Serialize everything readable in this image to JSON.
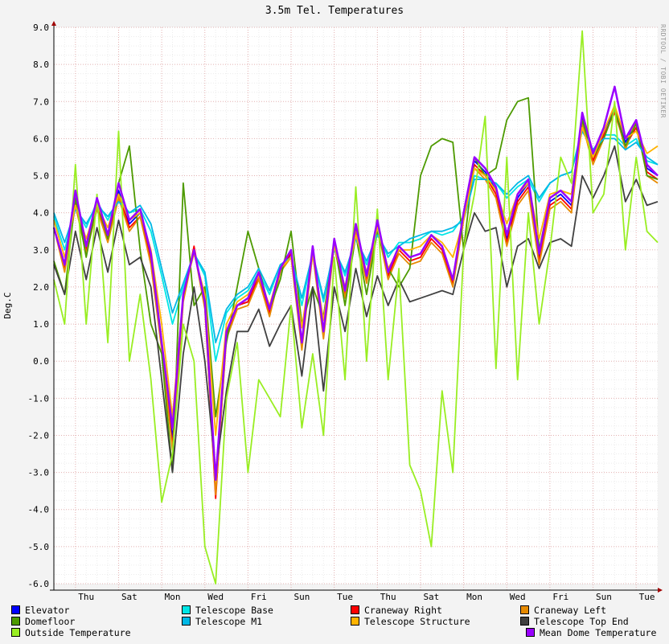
{
  "chart_data": {
    "type": "line",
    "title": "3.5m Tel. Temperatures",
    "vendor_label": "RRDTOOL / TOBI OETIKER",
    "ylabel": "Deg.C",
    "xlabel": "",
    "ylim": [
      -6.0,
      9.0
    ],
    "yticks": [
      "-6.0",
      "-5.0",
      "-4.0",
      "-3.0",
      "-2.0",
      "-1.0",
      "0.0",
      "1.0",
      "2.0",
      "3.0",
      "4.0",
      "5.0",
      "6.0",
      "7.0",
      "8.0",
      "9.0"
    ],
    "x_range_days": [
      0,
      14
    ],
    "x_tick_labels": [
      {
        "label": "Thu",
        "day": 0.75
      },
      {
        "label": "Sat",
        "day": 1.75
      },
      {
        "label": "Mon",
        "day": 2.75
      },
      {
        "label": "Wed",
        "day": 3.75
      },
      {
        "label": "Fri",
        "day": 4.75
      },
      {
        "label": "Sun",
        "day": 5.75
      },
      {
        "label": "Tue",
        "day": 6.75
      },
      {
        "label": "Thu",
        "day": 7.75
      },
      {
        "label": "Sat",
        "day": 8.75
      },
      {
        "label": "Mon",
        "day": 9.75
      },
      {
        "label": "Wed",
        "day": 10.75
      },
      {
        "label": "Fri",
        "day": 11.75
      },
      {
        "label": "Sun",
        "day": 12.75
      },
      {
        "label": "Tue",
        "day": 13.75
      }
    ],
    "grid": true,
    "legend_position": "bottom",
    "x": [
      0,
      0.25,
      0.5,
      0.75,
      1,
      1.25,
      1.5,
      1.75,
      2,
      2.25,
      2.5,
      2.75,
      3,
      3.25,
      3.5,
      3.75,
      4,
      4.25,
      4.5,
      4.75,
      5,
      5.25,
      5.5,
      5.75,
      6,
      6.25,
      6.5,
      6.75,
      7,
      7.25,
      7.5,
      7.75,
      8,
      8.25,
      8.5,
      8.75,
      9,
      9.25,
      9.5,
      9.75,
      10,
      10.25,
      10.5,
      10.75,
      11,
      11.25,
      11.5,
      11.75,
      12,
      12.25,
      12.5,
      12.75,
      13,
      13.25,
      13.5,
      13.75,
      14
    ],
    "series": [
      {
        "name": "Elevator",
        "color": "#0000ff",
        "values": [
          3.6,
          2.5,
          4.3,
          3.0,
          4.2,
          3.4,
          4.6,
          3.7,
          4.0,
          2.8,
          0.5,
          -2.1,
          1.8,
          3.0,
          1.5,
          -3.2,
          0.8,
          1.5,
          1.6,
          2.3,
          1.4,
          2.4,
          2.9,
          0.5,
          3.0,
          0.8,
          3.2,
          1.8,
          3.6,
          2.3,
          3.7,
          2.4,
          3.1,
          2.8,
          2.9,
          3.4,
          3.1,
          2.2,
          4.0,
          5.4,
          5.1,
          4.6,
          3.3,
          4.4,
          4.8,
          2.8,
          4.3,
          4.5,
          4.2,
          6.6,
          5.5,
          6.2,
          6.8,
          5.9,
          6.4,
          5.2,
          5.0
        ]
      },
      {
        "name": "Telescope Base",
        "color": "#00e6e6",
        "values": [
          3.9,
          3.0,
          4.1,
          3.6,
          4.3,
          3.8,
          4.4,
          4.0,
          4.1,
          3.5,
          2.3,
          1.0,
          2.0,
          2.9,
          2.3,
          0.0,
          1.3,
          1.7,
          1.9,
          2.4,
          1.8,
          2.6,
          2.8,
          1.5,
          2.9,
          1.6,
          3.1,
          2.3,
          3.3,
          2.6,
          3.5,
          2.8,
          3.2,
          3.2,
          3.3,
          3.5,
          3.4,
          3.5,
          3.9,
          5.0,
          4.9,
          4.8,
          4.4,
          4.7,
          4.9,
          4.3,
          4.8,
          5.0,
          5.1,
          6.3,
          5.7,
          6.1,
          6.1,
          5.8,
          6.0,
          5.4,
          5.3
        ]
      },
      {
        "name": "Craneway Right",
        "color": "#ff0000",
        "values": [
          3.6,
          2.5,
          4.3,
          3.0,
          4.2,
          3.3,
          4.5,
          3.6,
          3.9,
          2.7,
          0.4,
          -2.3,
          1.7,
          3.1,
          1.5,
          -3.7,
          0.7,
          1.5,
          1.6,
          2.3,
          1.3,
          2.5,
          2.9,
          0.4,
          3.0,
          0.7,
          3.2,
          1.8,
          3.6,
          2.2,
          3.7,
          2.3,
          3.0,
          2.7,
          2.8,
          3.3,
          3.0,
          2.1,
          3.9,
          5.3,
          5.0,
          4.5,
          3.2,
          4.3,
          4.7,
          2.7,
          4.2,
          4.4,
          4.1,
          6.5,
          5.4,
          6.1,
          6.7,
          5.8,
          6.3,
          5.1,
          4.9
        ]
      },
      {
        "name": "Craneway Left",
        "color": "#e68a00",
        "values": [
          3.6,
          2.4,
          4.2,
          2.9,
          4.1,
          3.2,
          4.4,
          3.5,
          3.9,
          2.6,
          0.3,
          -2.4,
          1.6,
          3.0,
          1.4,
          -3.6,
          0.6,
          1.4,
          1.5,
          2.2,
          1.2,
          2.4,
          2.8,
          0.3,
          2.9,
          0.6,
          3.1,
          1.7,
          3.5,
          2.1,
          3.6,
          2.2,
          2.9,
          2.6,
          2.7,
          3.2,
          2.9,
          2.0,
          3.8,
          5.2,
          4.9,
          4.4,
          3.1,
          4.2,
          4.6,
          2.6,
          4.1,
          4.3,
          4.0,
          6.4,
          5.3,
          6.0,
          6.8,
          5.7,
          6.5,
          5.0,
          4.8
        ]
      },
      {
        "name": "Domefloor",
        "color": "#4d9a00",
        "values": [
          2.7,
          1.8,
          4.4,
          2.8,
          4.3,
          3.3,
          4.8,
          5.8,
          3.0,
          1.0,
          0.2,
          -3.0,
          4.8,
          1.5,
          2.0,
          -1.5,
          0.5,
          2.0,
          3.5,
          2.5,
          1.4,
          2.2,
          3.5,
          1.0,
          2.0,
          1.2,
          3.2,
          1.5,
          3.4,
          1.8,
          3.5,
          2.5,
          2.0,
          2.5,
          5.0,
          5.8,
          6.0,
          5.9,
          3.0,
          5.5,
          5.0,
          5.2,
          6.5,
          7.0,
          7.1,
          3.0,
          4.4,
          4.6,
          4.5,
          6.5,
          5.5,
          6.0,
          6.8,
          5.8,
          6.4,
          5.0,
          4.9
        ]
      },
      {
        "name": "Telescope M1",
        "color": "#00b8e6",
        "values": [
          4.0,
          3.2,
          4.1,
          3.7,
          4.2,
          3.9,
          4.3,
          4.0,
          4.2,
          3.7,
          2.5,
          1.3,
          2.1,
          2.9,
          2.4,
          0.5,
          1.4,
          1.8,
          2.0,
          2.5,
          1.9,
          2.6,
          2.8,
          1.7,
          2.9,
          1.7,
          3.0,
          2.4,
          3.3,
          2.7,
          3.4,
          2.9,
          3.1,
          3.3,
          3.4,
          3.5,
          3.5,
          3.6,
          3.8,
          4.9,
          4.9,
          4.8,
          4.5,
          4.8,
          5.0,
          4.4,
          4.8,
          5.0,
          5.1,
          6.2,
          5.7,
          6.0,
          6.0,
          5.7,
          5.9,
          5.5,
          5.3
        ]
      },
      {
        "name": "Telescope Structure",
        "color": "#ffb300",
        "values": [
          3.8,
          2.8,
          4.2,
          3.3,
          4.2,
          3.6,
          4.5,
          3.8,
          4.0,
          3.0,
          1.0,
          -1.5,
          1.8,
          2.9,
          1.8,
          -2.0,
          1.0,
          1.6,
          1.8,
          2.3,
          1.5,
          2.5,
          2.8,
          0.9,
          2.9,
          1.1,
          3.1,
          2.0,
          3.4,
          2.4,
          3.6,
          2.5,
          3.0,
          3.0,
          3.1,
          3.4,
          3.2,
          2.8,
          3.8,
          5.2,
          5.0,
          4.6,
          3.7,
          4.5,
          4.8,
          3.3,
          4.5,
          4.6,
          4.5,
          6.3,
          5.5,
          6.2,
          6.9,
          6.0,
          6.2,
          5.6,
          5.8
        ]
      },
      {
        "name": "Telescope Top End",
        "color": "#404040",
        "values": [
          2.6,
          1.8,
          3.5,
          2.2,
          3.6,
          2.4,
          3.8,
          2.6,
          2.8,
          2.0,
          -0.5,
          -3.0,
          0.2,
          2.0,
          0.0,
          -3.0,
          -0.8,
          0.8,
          0.8,
          1.4,
          0.4,
          1.0,
          1.5,
          -0.4,
          2.0,
          -0.8,
          2.0,
          0.8,
          2.5,
          1.2,
          2.3,
          1.5,
          2.2,
          1.6,
          1.7,
          1.8,
          1.9,
          1.8,
          3.0,
          4.0,
          3.5,
          3.6,
          2.0,
          3.1,
          3.3,
          2.5,
          3.2,
          3.3,
          3.1,
          5.0,
          4.4,
          5.0,
          5.8,
          4.3,
          4.9,
          4.2,
          4.3
        ]
      },
      {
        "name": "Outside Temperature",
        "color": "#99ee22",
        "values": [
          2.2,
          1.0,
          5.3,
          1.0,
          4.5,
          0.5,
          6.2,
          0.0,
          1.8,
          -0.5,
          -3.8,
          -2.5,
          1.0,
          0.0,
          -5.0,
          -6.0,
          -1.0,
          0.5,
          -3.0,
          -0.5,
          -1.0,
          -1.5,
          1.5,
          -1.8,
          0.2,
          -2.0,
          2.8,
          -0.5,
          4.7,
          0.0,
          4.1,
          -0.5,
          2.5,
          -2.8,
          -3.5,
          -5.0,
          -0.8,
          -3.0,
          3.0,
          4.5,
          6.6,
          -0.2,
          5.5,
          -0.5,
          4.0,
          1.0,
          3.0,
          5.5,
          4.8,
          8.9,
          4.0,
          4.5,
          7.0,
          3.0,
          5.5,
          3.5,
          3.2
        ]
      },
      {
        "name": "Mean Dome Temperature",
        "color": "#9900ff",
        "values": [
          3.6,
          2.6,
          4.6,
          3.1,
          4.4,
          3.4,
          4.8,
          3.8,
          4.1,
          2.9,
          0.5,
          -1.8,
          1.8,
          3.0,
          1.6,
          -3.2,
          0.8,
          1.5,
          1.7,
          2.4,
          1.4,
          2.5,
          3.0,
          0.5,
          3.1,
          0.8,
          3.3,
          1.9,
          3.7,
          2.3,
          3.8,
          2.4,
          3.1,
          2.8,
          2.9,
          3.4,
          3.1,
          2.2,
          4.0,
          5.5,
          5.2,
          4.7,
          3.4,
          4.5,
          4.9,
          2.9,
          4.4,
          4.6,
          4.3,
          6.7,
          5.6,
          6.3,
          7.4,
          6.0,
          6.5,
          5.3,
          5.0
        ]
      }
    ]
  }
}
